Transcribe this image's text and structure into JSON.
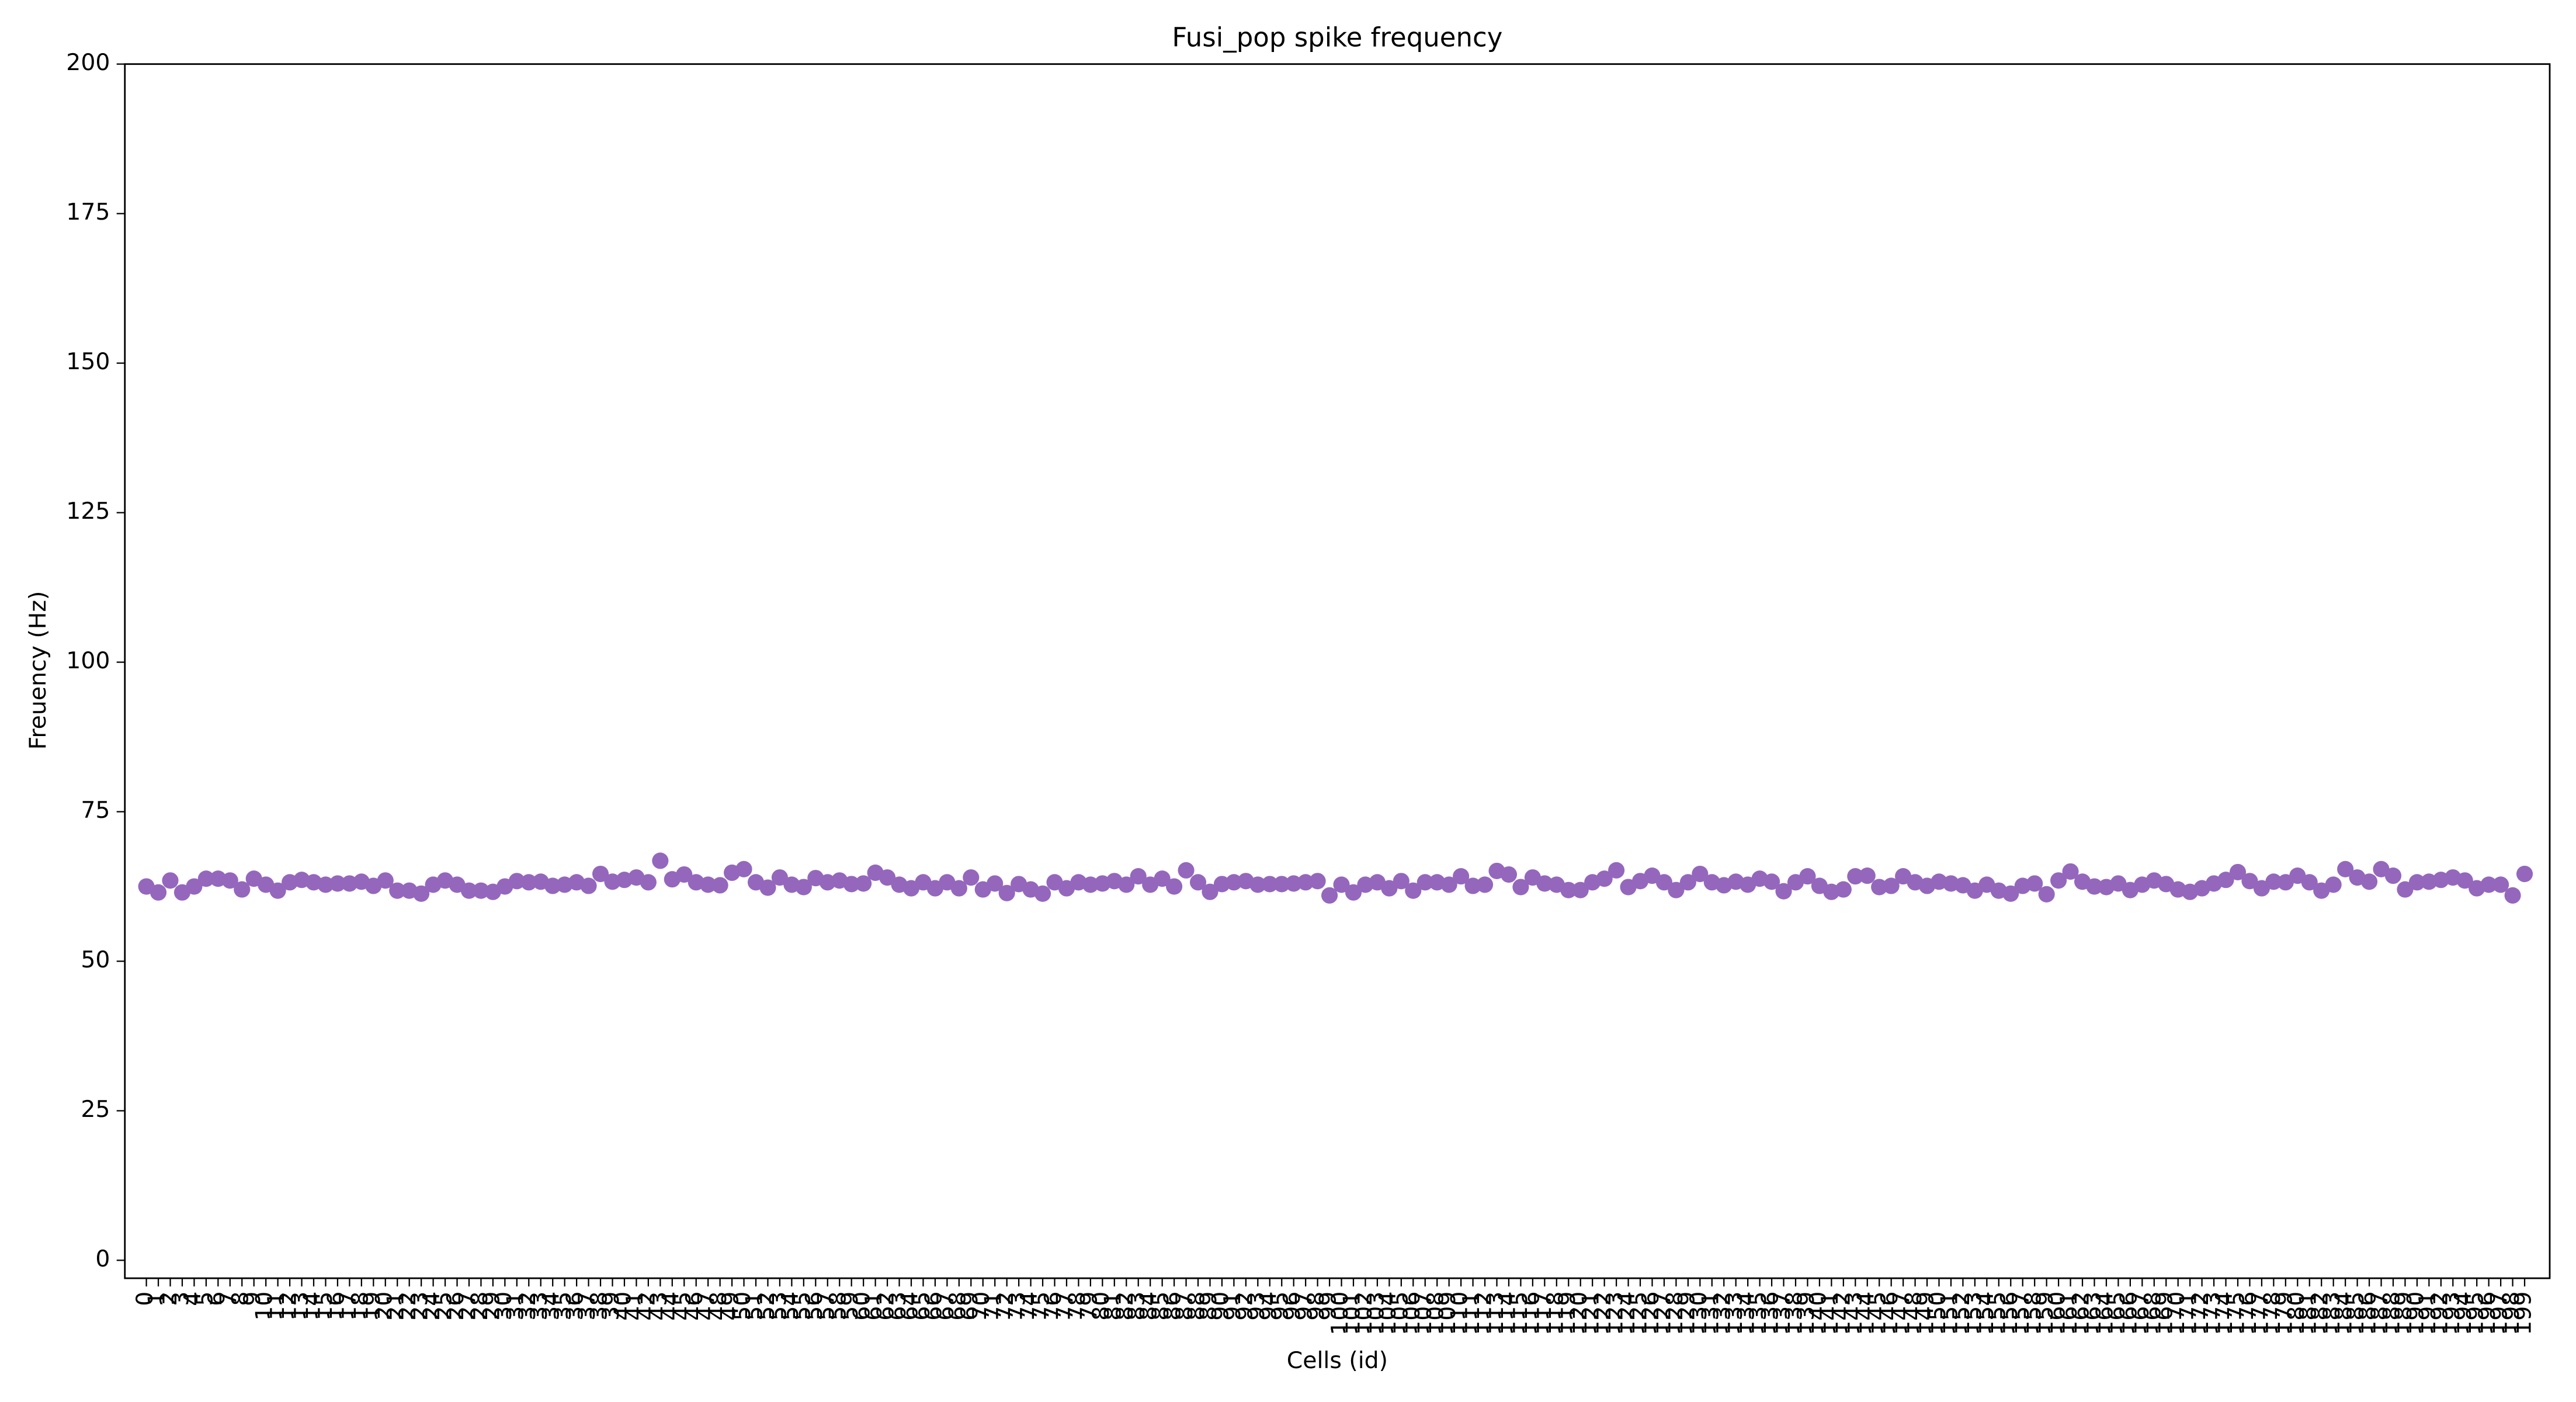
{
  "chart_data": {
    "type": "scatter",
    "title": "Fusi_pop spike frequency",
    "x_label": "Cells (id)",
    "y_label": "Freuency (Hz)",
    "x": [
      0,
      1,
      2,
      3,
      4,
      5,
      6,
      7,
      8,
      9,
      10,
      11,
      12,
      13,
      14,
      15,
      16,
      17,
      18,
      19,
      20,
      21,
      22,
      23,
      24,
      25,
      26,
      27,
      28,
      29,
      30,
      31,
      32,
      33,
      34,
      35,
      36,
      37,
      38,
      39,
      40,
      41,
      42,
      43,
      44,
      45,
      46,
      47,
      48,
      49,
      50,
      51,
      52,
      53,
      54,
      55,
      56,
      57,
      58,
      59,
      60,
      61,
      62,
      63,
      64,
      65,
      66,
      67,
      68,
      69,
      70,
      71,
      72,
      73,
      74,
      75,
      76,
      77,
      78,
      79,
      80,
      81,
      82,
      83,
      84,
      85,
      86,
      87,
      88,
      89,
      90,
      91,
      92,
      93,
      94,
      95,
      96,
      97,
      98,
      99,
      100,
      101,
      102,
      103,
      104,
      105,
      106,
      107,
      108,
      109,
      110,
      111,
      112,
      113,
      114,
      115,
      116,
      117,
      118,
      119,
      120,
      121,
      122,
      123,
      124,
      125,
      126,
      127,
      128,
      129,
      130,
      131,
      132,
      133,
      134,
      135,
      136,
      137,
      138,
      139,
      140,
      141,
      142,
      143,
      144,
      145,
      146,
      147,
      148,
      149,
      150,
      151,
      152,
      153,
      154,
      155,
      156,
      157,
      158,
      159,
      160,
      161,
      162,
      163,
      164,
      165,
      166,
      167,
      168,
      169,
      170,
      171,
      172,
      173,
      174,
      175,
      176,
      177,
      178,
      179,
      180,
      181,
      182,
      183,
      184,
      185,
      186,
      187,
      188,
      189,
      190,
      191,
      192,
      193,
      194,
      195,
      196,
      197,
      198,
      199
    ],
    "series": [
      {
        "color": "#9467bd",
        "values": [
          62.5,
          61.5,
          63.5,
          61.5,
          62.5,
          63.8,
          63.8,
          63.5,
          62,
          63.8,
          62.8,
          61.8,
          63.2,
          63.6,
          63.2,
          62.8,
          63,
          63,
          63.3,
          62.6,
          63.5,
          61.8,
          61.8,
          61.3,
          62.8,
          63.5,
          62.8,
          61.8,
          61.8,
          61.6,
          62.5,
          63.4,
          63.2,
          63.3,
          62.6,
          62.8,
          63.2,
          62.6,
          64.6,
          63.3,
          63.6,
          64,
          63.2,
          66.8,
          63.7,
          64.5,
          63.2,
          62.8,
          62.7,
          64.8,
          65.4,
          63.2,
          62.3,
          64,
          62.8,
          62.4,
          63.9,
          63.2,
          63.5,
          62.9,
          63,
          64.8,
          64,
          62.8,
          62.2,
          63.2,
          62.2,
          63.2,
          62.2,
          64,
          62,
          63,
          61.4,
          62.9,
          62,
          61.3,
          63.2,
          62.2,
          63.2,
          62.8,
          63,
          63.4,
          62.8,
          64.2,
          62.8,
          63.8,
          62.5,
          65.2,
          63.2,
          61.6,
          62.9,
          63.2,
          63.4,
          62.8,
          62.9,
          62.9,
          63,
          63.2,
          63.4,
          61,
          62.8,
          61.5,
          62.8,
          63.2,
          62.2,
          63.4,
          61.8,
          63.2,
          63.2,
          62.8,
          64.2,
          62.6,
          62.8,
          65.1,
          64.5,
          62.4,
          64,
          63,
          62.8,
          61.9,
          61.9,
          63.2,
          63.8,
          65.2,
          62.4,
          63.4,
          64.3,
          63.2,
          61.9,
          63.2,
          64.6,
          63.2,
          62.7,
          63.3,
          62.8,
          63.8,
          63.3,
          61.7,
          63.2,
          64.2,
          62.6,
          61.6,
          62,
          64.2,
          64.3,
          62.4,
          62.6,
          64.2,
          63.2,
          62.6,
          63.3,
          63,
          62.7,
          61.8,
          62.8,
          61.8,
          61.3,
          62.6,
          63,
          61.2,
          63.5,
          65,
          63.3,
          62.5,
          62.4,
          63,
          61.9,
          62.8,
          63.5,
          62.9,
          62,
          61.6,
          62.2,
          63,
          63.6,
          64.9,
          63.4,
          62.2,
          63.3,
          63.2,
          64.3,
          63.2,
          61.8,
          62.8,
          65.4,
          64,
          63.3,
          65.4,
          64.3,
          62,
          63.2,
          63.3,
          63.6,
          64,
          63.5,
          62.2,
          62.8,
          62.8,
          61,
          64.6
        ]
      }
    ],
    "xlim": [
      -1.8,
      201.1
    ],
    "xticks": [
      0,
      1,
      2,
      3,
      4,
      5,
      6,
      7,
      8,
      9,
      10,
      11,
      12,
      13,
      14,
      15,
      16,
      17,
      18,
      19,
      20,
      21,
      22,
      23,
      24,
      25,
      26,
      27,
      28,
      29,
      30,
      31,
      32,
      33,
      34,
      35,
      36,
      37,
      38,
      39,
      40,
      41,
      42,
      43,
      44,
      45,
      46,
      47,
      48,
      49,
      50,
      51,
      52,
      53,
      54,
      55,
      56,
      57,
      58,
      59,
      60,
      61,
      62,
      63,
      64,
      65,
      66,
      67,
      68,
      69,
      70,
      71,
      72,
      73,
      74,
      75,
      76,
      77,
      78,
      79,
      80,
      81,
      82,
      83,
      84,
      85,
      86,
      87,
      88,
      89,
      90,
      91,
      92,
      93,
      94,
      95,
      96,
      97,
      98,
      99,
      100,
      101,
      102,
      103,
      104,
      105,
      106,
      107,
      108,
      109,
      110,
      111,
      112,
      113,
      114,
      115,
      116,
      117,
      118,
      119,
      120,
      121,
      122,
      123,
      124,
      125,
      126,
      127,
      128,
      129,
      130,
      131,
      132,
      133,
      134,
      135,
      136,
      137,
      138,
      139,
      140,
      141,
      142,
      143,
      144,
      145,
      146,
      147,
      148,
      149,
      150,
      151,
      152,
      153,
      154,
      155,
      156,
      157,
      158,
      159,
      160,
      161,
      162,
      163,
      164,
      165,
      166,
      167,
      168,
      169,
      170,
      171,
      172,
      173,
      174,
      175,
      176,
      177,
      178,
      179,
      180,
      181,
      182,
      183,
      184,
      185,
      186,
      187,
      188,
      189,
      190,
      191,
      192,
      193,
      194,
      195,
      196,
      197,
      198,
      199
    ],
    "ylim": [
      -3,
      200
    ],
    "yticks": [
      0,
      25,
      50,
      75,
      100,
      125,
      150,
      175,
      200
    ]
  }
}
